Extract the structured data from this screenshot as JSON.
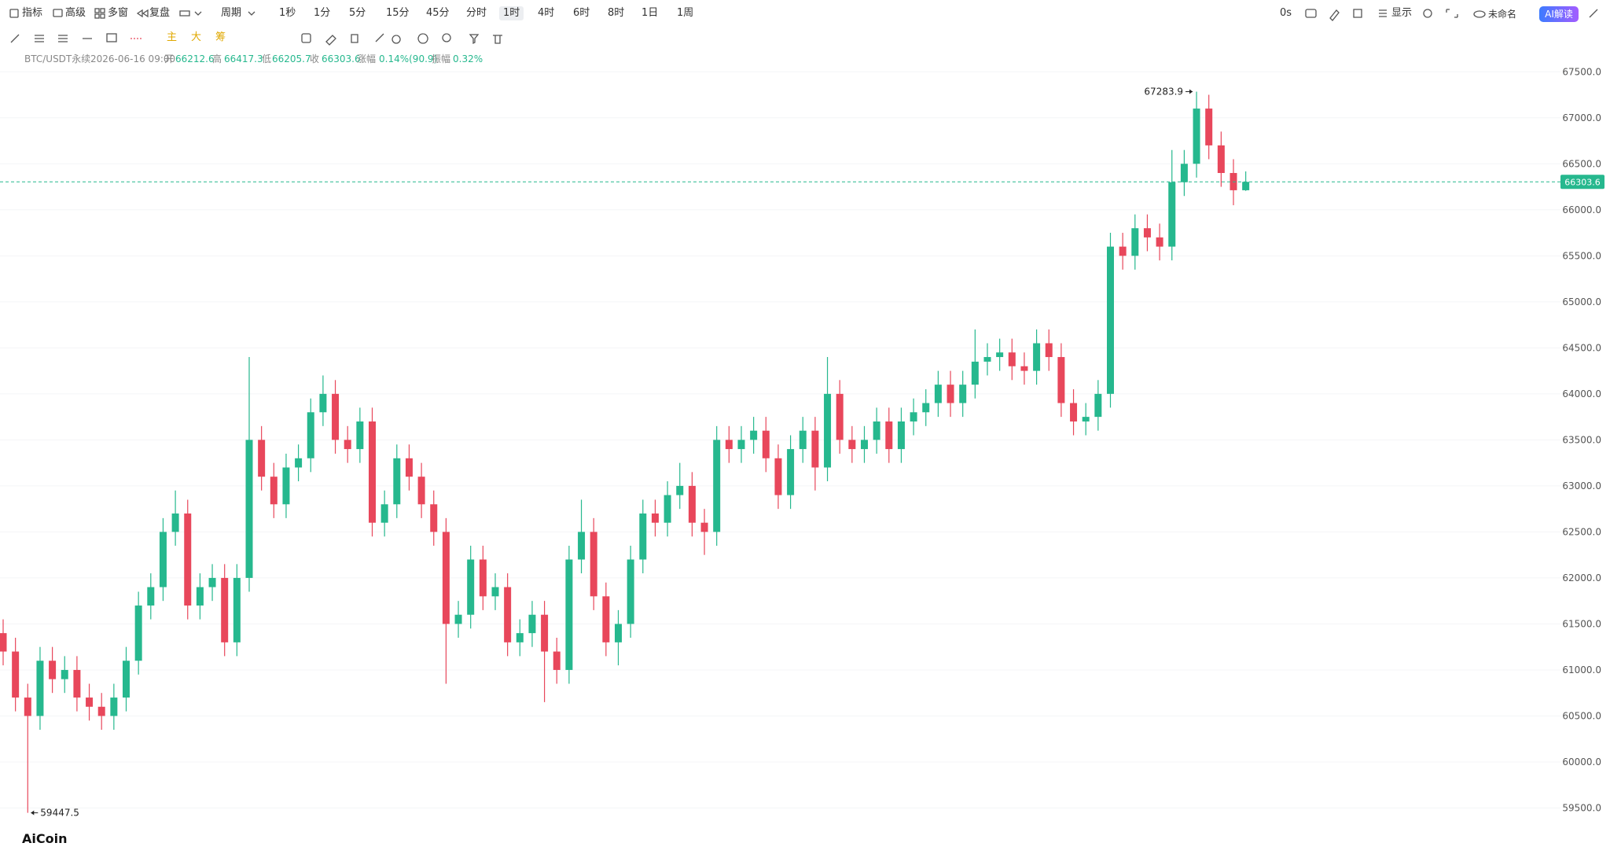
{
  "toolbar": {
    "left": [
      "指标",
      "高级",
      "多窗",
      "复盘",
      "周期"
    ],
    "periods": [
      "1秒",
      "1分",
      "5分",
      "15分",
      "45分",
      "分时",
      "1时",
      "4时",
      "6时",
      "8时",
      "1日",
      "1周"
    ],
    "right": [
      "0s",
      "显示",
      "未命名",
      "AI解读"
    ],
    "draw_tags": [
      "主",
      "大",
      "筹"
    ]
  },
  "info": {
    "symbol": "BTC/USDT永续",
    "time": "2026-06-16 09:00",
    "open_label": "开",
    "open": 66212.6,
    "high_label": "高",
    "high": 66417.3,
    "low_label": "低",
    "low": 66205.7,
    "close_label": "收",
    "close": 66303.6,
    "change_label": "涨幅",
    "change": "0.14%(90.9)",
    "amplitude_label": "振幅",
    "amplitude": "0.32%"
  },
  "logo": "AiCoin",
  "chart_data": {
    "type": "candlestick",
    "up_color": "#26b88e",
    "down_color": "#e8475b",
    "grid": true,
    "ylim": [
      59000,
      67750
    ],
    "yticks": [
      {
        "value": 59500,
        "label": "59500.0"
      },
      {
        "value": 60000,
        "label": "60000.0"
      },
      {
        "value": 60500,
        "label": "60500.0"
      },
      {
        "value": 61000,
        "label": "61000.0"
      },
      {
        "value": 61500,
        "label": "61500.0"
      },
      {
        "value": 62000,
        "label": "62000.0"
      },
      {
        "value": 62500,
        "label": "62500.0"
      },
      {
        "value": 63000,
        "label": "63000.0"
      },
      {
        "value": 63500,
        "label": "63500.0"
      },
      {
        "value": 64000,
        "label": "64000.0"
      },
      {
        "value": 64500,
        "label": "64500.0"
      },
      {
        "value": 65000,
        "label": "65000.0"
      },
      {
        "value": 65500,
        "label": "65500.0"
      },
      {
        "value": 66000,
        "label": "66000.0"
      },
      {
        "value": 66500,
        "label": "66500.0"
      },
      {
        "value": 67000,
        "label": "67000.0"
      },
      {
        "value": 67500,
        "label": "67500.0"
      }
    ],
    "open": [
      61400,
      61200,
      60700,
      60500,
      61100,
      60900,
      61000,
      60700,
      60600,
      60500,
      60700,
      61100,
      61700,
      61900,
      62500,
      62700,
      61700,
      61900,
      62000,
      61300,
      62000,
      63500,
      63100,
      62800,
      63200,
      63300,
      63800,
      64000,
      63500,
      63400,
      63700,
      62600,
      62800,
      63300,
      63100,
      62800,
      62500,
      61500,
      61600,
      62200,
      61800,
      61900,
      61300,
      61400,
      61600,
      61200,
      61000,
      62200,
      62500,
      61800,
      61300,
      61500,
      62200,
      62700,
      62600,
      62900,
      63000,
      62600,
      62500,
      63500,
      63400,
      63500,
      63600,
      63300,
      62900,
      63400,
      63600,
      63200,
      64000,
      63500,
      63400,
      63500,
      63700,
      63400,
      63700,
      63800,
      63900,
      64100,
      63900,
      64100,
      64350,
      64400,
      64450,
      64300,
      64250,
      64550,
      64400,
      63900,
      63700,
      63750,
      64000,
      65600,
      65500,
      65800,
      65700,
      65600,
      66300,
      66500,
      67100,
      66700,
      66400,
      66212.6
    ],
    "high": [
      61550,
      61350,
      60850,
      61250,
      61250,
      61150,
      61150,
      60850,
      60750,
      60850,
      61250,
      61850,
      62050,
      62650,
      62950,
      62850,
      62050,
      62150,
      62150,
      62150,
      64400,
      63650,
      63250,
      63350,
      63450,
      63950,
      64200,
      64150,
      63650,
      63850,
      63850,
      62950,
      63450,
      63450,
      63250,
      62950,
      62650,
      61750,
      62350,
      62350,
      62050,
      62050,
      61550,
      61750,
      61750,
      61350,
      62350,
      62850,
      62650,
      61950,
      61650,
      62350,
      62850,
      62850,
      63050,
      63250,
      63150,
      62750,
      63650,
      63650,
      63650,
      63750,
      63750,
      63450,
      63550,
      63750,
      63750,
      64400,
      64150,
      63650,
      63650,
      63850,
      63850,
      63850,
      63950,
      64050,
      64250,
      64250,
      64250,
      64700,
      64550,
      64600,
      64600,
      64450,
      64700,
      64700,
      64550,
      64050,
      63900,
      64150,
      65750,
      65750,
      65950,
      65950,
      65850,
      66650,
      66650,
      67283.9,
      67250,
      66850,
      66550,
      66417.3
    ],
    "low": [
      61050,
      60550,
      59447.5,
      60350,
      60750,
      60750,
      60550,
      60450,
      60350,
      60350,
      60550,
      60950,
      61550,
      61750,
      62350,
      61550,
      61550,
      61750,
      61150,
      61150,
      61850,
      62950,
      62650,
      62650,
      63050,
      63150,
      63650,
      63350,
      63250,
      63250,
      62450,
      62450,
      62650,
      62950,
      62650,
      62350,
      60850,
      61350,
      61450,
      61650,
      61650,
      61150,
      61150,
      61250,
      60650,
      60850,
      60850,
      62050,
      61650,
      61150,
      61050,
      61350,
      62050,
      62450,
      62450,
      62750,
      62450,
      62250,
      62350,
      63250,
      63250,
      63350,
      63150,
      62750,
      62750,
      63250,
      62950,
      63050,
      63350,
      63250,
      63250,
      63350,
      63250,
      63250,
      63550,
      63650,
      63750,
      63750,
      63750,
      63950,
      64200,
      64250,
      64150,
      64100,
      64100,
      64250,
      63750,
      63550,
      63550,
      63600,
      63850,
      65350,
      65350,
      65550,
      65450,
      65450,
      66150,
      66350,
      66550,
      66250,
      66050,
      66205.7
    ],
    "close": [
      61200,
      60700,
      60500,
      61100,
      60900,
      61000,
      60700,
      60600,
      60500,
      60700,
      61100,
      61700,
      61900,
      62500,
      62700,
      61700,
      61900,
      62000,
      61300,
      62000,
      63500,
      63100,
      62800,
      63200,
      63300,
      63800,
      64000,
      63500,
      63400,
      63700,
      62600,
      62800,
      63300,
      63100,
      62800,
      62500,
      61500,
      61600,
      62200,
      61800,
      61900,
      61300,
      61400,
      61600,
      61200,
      61000,
      62200,
      62500,
      61800,
      61300,
      61500,
      62200,
      62700,
      62600,
      62900,
      63000,
      62600,
      62500,
      63500,
      63400,
      63500,
      63600,
      63300,
      62900,
      63400,
      63600,
      63200,
      64000,
      63500,
      63400,
      63500,
      63700,
      63400,
      63700,
      63800,
      63900,
      64100,
      63900,
      64100,
      64350,
      64400,
      64450,
      64300,
      64250,
      64550,
      64400,
      63900,
      63700,
      63750,
      64000,
      65600,
      65500,
      65800,
      65700,
      65600,
      66300,
      66500,
      67100,
      66700,
      66400,
      66212.6,
      66303.6
    ],
    "annotations": {
      "max": 67283.9,
      "min": 59447.5,
      "last": 66303.6
    }
  }
}
